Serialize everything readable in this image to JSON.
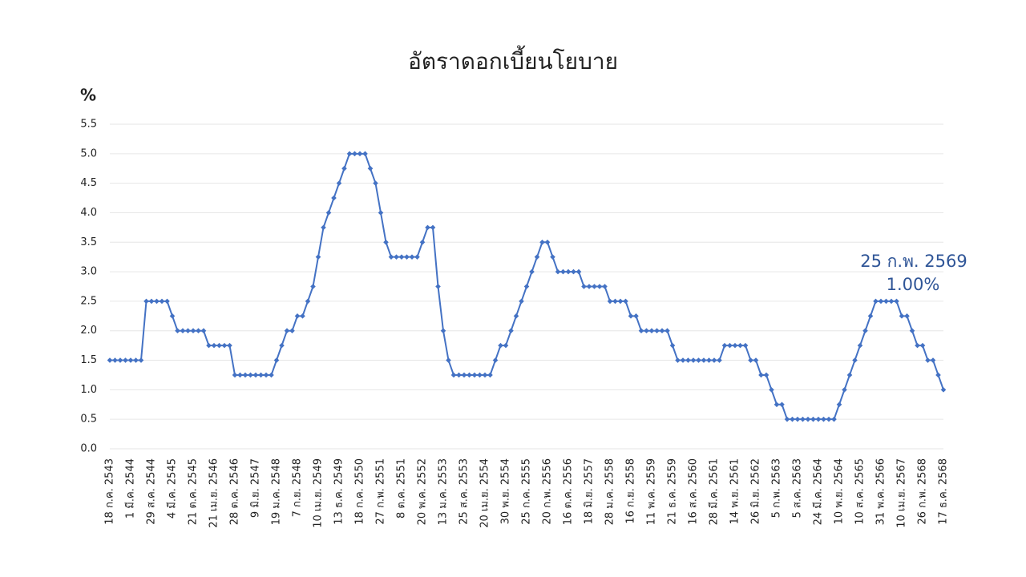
{
  "chart_data": {
    "type": "line",
    "title": "อัตราดอกเบี้ยนโยบาย",
    "y_label": "%",
    "annotation": {
      "date": "25 ก.พ. 2569",
      "value": "1.00%"
    },
    "color": "#4472c4",
    "grid": true,
    "marker": "diamond",
    "ylim": [
      0,
      5.5
    ],
    "yticks": [
      {
        "value": 0,
        "label": "0.0"
      },
      0.5,
      {
        "value": 1,
        "label": "1.0"
      },
      1.5,
      {
        "value": 2,
        "label": "2.0"
      },
      2.5,
      {
        "value": 3,
        "label": "3.0"
      },
      3.5,
      {
        "value": 4,
        "label": "4.0"
      },
      4.5,
      {
        "value": 5,
        "label": "5.0"
      },
      5.5
    ],
    "categories": [
      "18 ก.ค. 2543",
      null,
      null,
      null,
      "1 มี.ค. 2544",
      null,
      null,
      null,
      "29 ส.ค. 2544",
      null,
      null,
      null,
      "4 มี.ค. 2545",
      null,
      null,
      null,
      "21 ต.ค. 2545",
      null,
      null,
      null,
      "21 เม.ย. 2546",
      null,
      null,
      null,
      "28 ต.ค. 2546",
      null,
      null,
      null,
      "9 มิ.ย. 2547",
      null,
      null,
      null,
      "19 ม.ค. 2548",
      null,
      null,
      null,
      "7 ก.ย. 2548",
      null,
      null,
      null,
      "10 เม.ย. 2549",
      null,
      null,
      null,
      "13 ธ.ค. 2549",
      null,
      null,
      null,
      "18 ก.ค. 2550",
      null,
      null,
      null,
      "27 ก.พ. 2551",
      null,
      null,
      null,
      "8 ต.ค. 2551",
      null,
      null,
      null,
      "20 พ.ค. 2552",
      null,
      null,
      null,
      "13 ม.ค. 2553",
      null,
      null,
      null,
      "25 ส.ค. 2553",
      null,
      null,
      null,
      "20 เม.ย. 2554",
      null,
      null,
      null,
      "30 พ.ย. 2554",
      null,
      null,
      null,
      "25 ก.ค. 2555",
      null,
      null,
      null,
      "20 ก.พ. 2556",
      null,
      null,
      null,
      "16 ต.ค. 2556",
      null,
      null,
      null,
      "18 มิ.ย. 2557",
      null,
      null,
      null,
      "28 ม.ค. 2558",
      null,
      null,
      null,
      "16 ก.ย. 2558",
      null,
      null,
      null,
      "11 พ.ค. 2559",
      null,
      null,
      null,
      "21 ธ.ค. 2559",
      null,
      null,
      null,
      "16 ส.ค. 2560",
      null,
      null,
      null,
      "28 มี.ค. 2561",
      null,
      null,
      null,
      "14 พ.ย. 2561",
      null,
      null,
      null,
      "26 มิ.ย. 2562",
      null,
      null,
      null,
      "5 ก.พ. 2563",
      null,
      null,
      null,
      "5 ส.ค. 2563",
      null,
      null,
      null,
      "24 มี.ค. 2564",
      null,
      null,
      null,
      "10 พ.ย. 2564",
      null,
      null,
      null,
      "10 ส.ค. 2565",
      null,
      null,
      null,
      "31 พ.ค. 2566",
      null,
      null,
      null,
      "10 เม.ย. 2567",
      null,
      null,
      null,
      "26 ก.พ. 2568",
      null,
      null,
      null,
      "17 ธ.ค. 2568"
    ],
    "values": [
      1.5,
      1.5,
      1.5,
      1.5,
      1.5,
      1.5,
      1.5,
      2.5,
      2.5,
      2.5,
      2.5,
      2.5,
      2.25,
      2,
      2,
      2,
      2,
      2,
      2,
      1.75,
      1.75,
      1.75,
      1.75,
      1.75,
      1.25,
      1.25,
      1.25,
      1.25,
      1.25,
      1.25,
      1.25,
      1.25,
      1.5,
      1.75,
      2,
      2,
      2.25,
      2.25,
      2.5,
      2.75,
      3.25,
      3.75,
      4,
      4.25,
      4.5,
      4.75,
      5,
      5,
      5,
      5,
      4.75,
      4.5,
      4,
      3.5,
      3.25,
      3.25,
      3.25,
      3.25,
      3.25,
      3.25,
      3.5,
      3.75,
      3.75,
      2.75,
      2,
      1.5,
      1.25,
      1.25,
      1.25,
      1.25,
      1.25,
      1.25,
      1.25,
      1.25,
      1.5,
      1.75,
      1.75,
      2,
      2.25,
      2.5,
      2.75,
      3,
      3.25,
      3.5,
      3.5,
      3.25,
      3,
      3,
      3,
      3,
      3,
      2.75,
      2.75,
      2.75,
      2.75,
      2.75,
      2.5,
      2.5,
      2.5,
      2.5,
      2.25,
      2.25,
      2,
      2,
      2,
      2,
      2,
      2,
      1.75,
      1.5,
      1.5,
      1.5,
      1.5,
      1.5,
      1.5,
      1.5,
      1.5,
      1.5,
      1.75,
      1.75,
      1.75,
      1.75,
      1.75,
      1.5,
      1.5,
      1.25,
      1.25,
      1,
      0.75,
      0.75,
      0.5,
      0.5,
      0.5,
      0.5,
      0.5,
      0.5,
      0.5,
      0.5,
      0.5,
      0.5,
      0.75,
      1,
      1.25,
      1.5,
      1.75,
      2,
      2.25,
      2.5,
      2.5,
      2.5,
      2.5,
      2.5,
      2.25,
      2.25,
      2,
      1.75,
      1.75,
      1.5,
      1.5,
      1.25,
      1
    ]
  }
}
